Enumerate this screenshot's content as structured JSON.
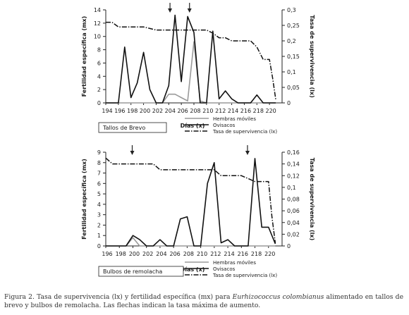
{
  "caption": {
    "prefix": "Figura 2. Tasa de supervivencia (lx) y fertilidad específica (mx) para ",
    "species": "Eurhizococcus colombianus",
    "suffix": " alimentado en tallos de brevo y bulbos de remolacha. Las flechas indican la tasa máxima de aumento."
  },
  "colors": {
    "mx": "#111111",
    "hembras": "#9a9a9a",
    "lx": "#111111",
    "axis": "#222222"
  },
  "chart_data": [
    {
      "type": "line",
      "panel_label": "Tallos de Brevo",
      "xlabel": "Días (x)",
      "ylabel": "Fertilidad específica (mx)",
      "y2label": "Tasa de supervivencia (lx)",
      "x_ticks": [
        "194",
        "196",
        "198",
        "200",
        "202",
        "204",
        "206",
        "208",
        "210",
        "212",
        "214",
        "216",
        "218",
        "220"
      ],
      "ylim": [
        0,
        14
      ],
      "y_ticks": [
        "0",
        "2",
        "4",
        "6",
        "8",
        "10",
        "12",
        "14"
      ],
      "y2lim": [
        0,
        0.3
      ],
      "y2_ticks": [
        "0",
        "0,05",
        "0,1",
        "0,15",
        "0,2",
        "0,25",
        "0,3"
      ],
      "arrows_x": [
        204.2,
        207.3
      ],
      "legend": [
        "Hembras móviles",
        "Ovisacos",
        "Tasa de supervivencia (lx)"
      ],
      "series": [
        {
          "key": "hembras",
          "axis": "left",
          "x": [
            194,
            195,
            196,
            197,
            198,
            199,
            200,
            201,
            202,
            203,
            204,
            205,
            206,
            207,
            208,
            209,
            210,
            211,
            212,
            213,
            214,
            215,
            216,
            217,
            218,
            219,
            220,
            221
          ],
          "values": [
            0,
            0,
            0,
            0,
            0,
            0,
            0,
            0,
            0,
            0,
            1.3,
            1.3,
            0.8,
            0.3,
            9.2,
            0.3,
            0,
            0,
            0,
            0,
            0,
            0,
            0,
            0,
            0,
            0,
            0,
            0
          ]
        },
        {
          "key": "mx",
          "axis": "left",
          "x": [
            194,
            195,
            196,
            197,
            198,
            199,
            200,
            201,
            202,
            203,
            204,
            205,
            206,
            207,
            208,
            209,
            210,
            211,
            212,
            213,
            214,
            215,
            216,
            217,
            218,
            219,
            220,
            221
          ],
          "values": [
            0,
            0,
            0,
            8.4,
            0.8,
            3,
            7.6,
            2,
            0,
            0,
            2.6,
            13.2,
            3.2,
            13,
            10.6,
            0,
            0,
            10.8,
            0.6,
            1.8,
            0.6,
            0,
            0,
            0,
            1.2,
            0,
            0,
            0
          ]
        },
        {
          "key": "lx",
          "axis": "right",
          "x": [
            194,
            195,
            196,
            197,
            198,
            199,
            200,
            201,
            202,
            203,
            204,
            205,
            206,
            207,
            208,
            209,
            210,
            211,
            212,
            213,
            214,
            215,
            216,
            217,
            218,
            219,
            220,
            220.5,
            221
          ],
          "values": [
            0.26,
            0.26,
            0.245,
            0.245,
            0.245,
            0.245,
            0.245,
            0.24,
            0.235,
            0.235,
            0.235,
            0.235,
            0.235,
            0.235,
            0.235,
            0.235,
            0.235,
            0.225,
            0.21,
            0.21,
            0.2,
            0.2,
            0.2,
            0.2,
            0.18,
            0.14,
            0.14,
            0.08,
            0.01
          ]
        }
      ]
    },
    {
      "type": "line",
      "panel_label": "Bulbos de remolacha",
      "xlabel": "Días (x)",
      "ylabel": "Fertilidad específica (mx)",
      "y2label": "Tasa de supervivencia (lx)",
      "x_ticks": [
        "196",
        "198",
        "200",
        "202",
        "204",
        "206",
        "208",
        "210",
        "212",
        "214",
        "216",
        "218",
        "220"
      ],
      "ylim": [
        0,
        9
      ],
      "y_ticks": [
        "0",
        "1",
        "2",
        "3",
        "4",
        "5",
        "6",
        "7",
        "8",
        "9"
      ],
      "y2lim": [
        0,
        0.16
      ],
      "y2_ticks": [
        "0",
        "0,02",
        "0,04",
        "0,06",
        "0,08",
        "0,1",
        "0,12",
        "0,14",
        "0,16"
      ],
      "arrows_x": [
        199.9,
        216.9
      ],
      "legend": [
        "Hembras móviles",
        "Ovisacos",
        "Tasa de supervivencia (lx)"
      ],
      "series": [
        {
          "key": "hembras",
          "axis": "left",
          "x": [
            196,
            197,
            198,
            199,
            200,
            201,
            202,
            203,
            204,
            205,
            206,
            207,
            208,
            209,
            210,
            211,
            212,
            213,
            214,
            215,
            216,
            217,
            218,
            219,
            220,
            221
          ],
          "values": [
            0,
            0,
            0,
            0,
            0.8,
            0,
            0,
            0,
            0,
            0,
            0,
            0,
            0,
            0,
            0,
            0,
            0,
            0,
            0,
            0,
            0,
            0,
            0,
            0,
            0,
            0
          ]
        },
        {
          "key": "mx",
          "axis": "left",
          "x": [
            196,
            197,
            198,
            199,
            200,
            201,
            202,
            203,
            204,
            205,
            206,
            207,
            208,
            209,
            210,
            211,
            212,
            213,
            214,
            215,
            216,
            217,
            218,
            219,
            220,
            221
          ],
          "values": [
            0,
            0,
            0,
            0,
            1,
            0.6,
            0,
            0,
            0.6,
            0,
            0,
            2.6,
            2.8,
            0,
            0,
            6,
            8,
            0.3,
            0.6,
            0,
            0,
            0,
            8.4,
            1.8,
            1.8,
            0.2
          ]
        },
        {
          "key": "lx",
          "axis": "right",
          "x": [
            196,
            196.5,
            197,
            198,
            199,
            200,
            201,
            202,
            203,
            204,
            205,
            206,
            207,
            208,
            209,
            210,
            211,
            212,
            213,
            214,
            215,
            216,
            217,
            218,
            219,
            220,
            220.5,
            221
          ],
          "values": [
            0.15,
            0.145,
            0.14,
            0.14,
            0.14,
            0.14,
            0.14,
            0.14,
            0.14,
            0.13,
            0.13,
            0.13,
            0.13,
            0.13,
            0.13,
            0.13,
            0.13,
            0.13,
            0.12,
            0.12,
            0.12,
            0.12,
            0.115,
            0.11,
            0.11,
            0.11,
            0.05,
            0.005
          ]
        }
      ]
    }
  ]
}
